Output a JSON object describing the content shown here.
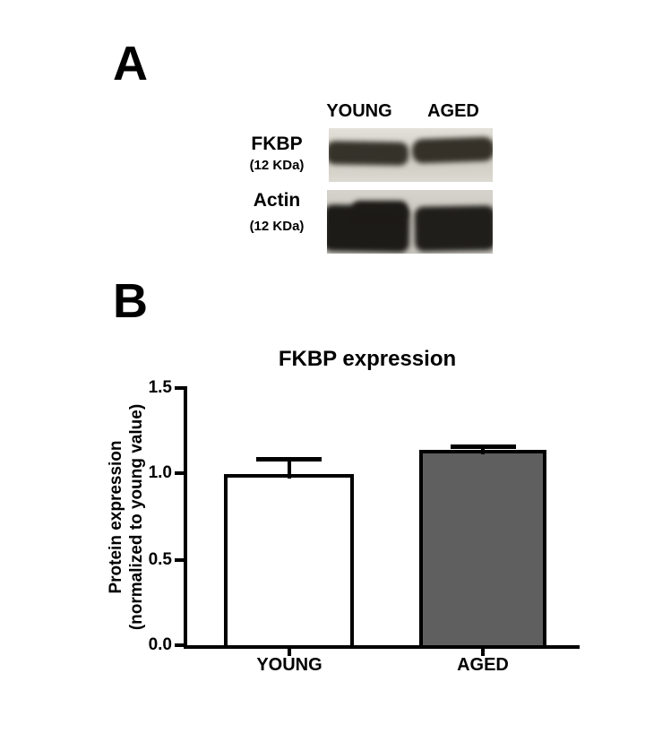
{
  "figure": {
    "panel_a": {
      "label": "A",
      "col_headers": [
        "YOUNG",
        "AGED"
      ],
      "rows": [
        {
          "name": "FKBP",
          "kda": "(12 KDa)"
        },
        {
          "name": "Actin",
          "kda": "(12 KDa)"
        }
      ]
    },
    "panel_b": {
      "label": "B"
    }
  },
  "chart_data": {
    "type": "bar",
    "title": "FKBP expression",
    "categories": [
      "YOUNG",
      "AGED"
    ],
    "values": [
      1.0,
      1.14
    ],
    "errors": [
      0.1,
      0.03
    ],
    "error_style": "upper cap with whisker",
    "bar_colors": [
      "#ffffff",
      "#5f5f5f"
    ],
    "bar_border_color": "#000000",
    "ylabel_line1": "Protein expression",
    "ylabel_line2": "(normalized to young value)",
    "yticks": [
      "1.5",
      "1.0",
      "0.5",
      "0.0"
    ],
    "ylim": [
      0.0,
      1.5
    ],
    "xlabel": "",
    "grid": false,
    "legend": "none"
  }
}
